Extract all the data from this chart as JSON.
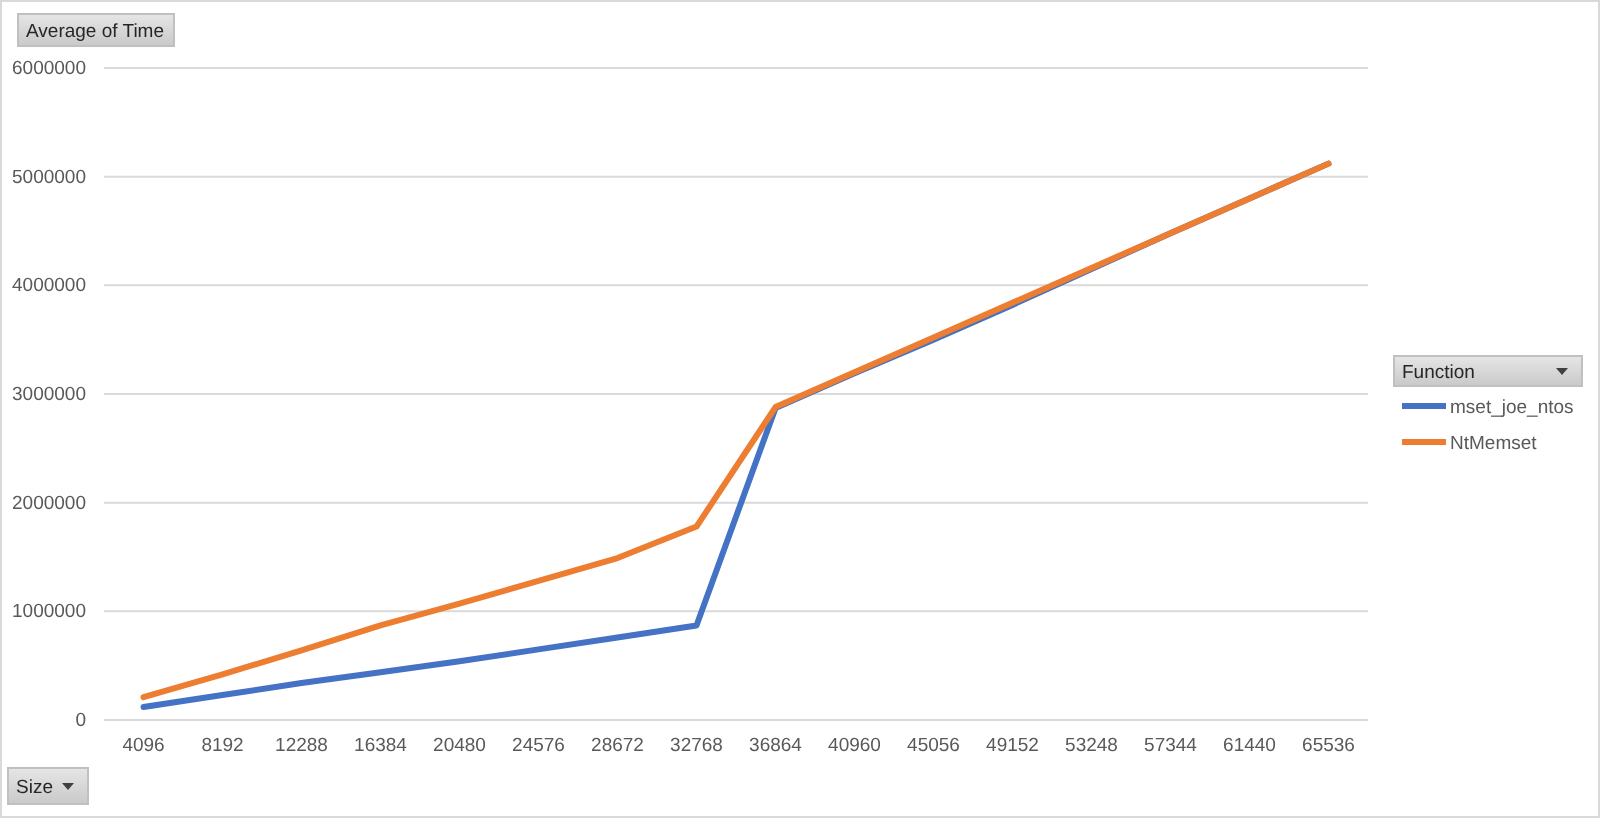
{
  "chart_data": {
    "type": "line",
    "ylabel": "Average of Time",
    "xlabel": "Size",
    "legend_title": "Function",
    "categories": [
      "4096",
      "8192",
      "12288",
      "16384",
      "20480",
      "24576",
      "28672",
      "32768",
      "36864",
      "40960",
      "45056",
      "49152",
      "53248",
      "57344",
      "61440",
      "65536"
    ],
    "series": [
      {
        "name": "mset_joe_ntos",
        "color": "#4472c4",
        "values": [
          120000,
          230000,
          340000,
          440000,
          540000,
          650000,
          760000,
          870000,
          2870000,
          3190000,
          3500000,
          3820000,
          4150000,
          4480000,
          4800000,
          5120000
        ]
      },
      {
        "name": "NtMemset",
        "color": "#ed7d31",
        "values": [
          210000,
          420000,
          640000,
          870000,
          1070000,
          1280000,
          1490000,
          1780000,
          2880000,
          3200000,
          3520000,
          3840000,
          4160000,
          4480000,
          4800000,
          5120000
        ]
      }
    ],
    "ylim": [
      0,
      6000000
    ],
    "yticks": [
      0,
      1000000,
      2000000,
      3000000,
      4000000,
      5000000,
      6000000
    ],
    "grid": "y",
    "legend": "right",
    "marker": "none",
    "line_style": "solid"
  }
}
